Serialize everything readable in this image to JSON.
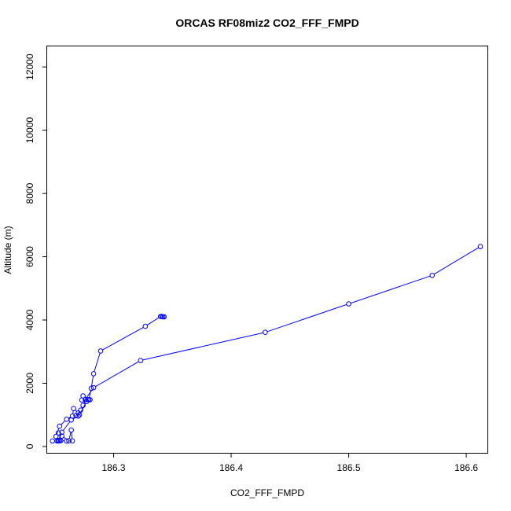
{
  "chart_data": {
    "type": "line",
    "title": "ORCAS RF08miz2 CO2_FFF_FMPD",
    "xlabel": "CO2_FFF_FMPD",
    "ylabel": "Altitude (m)",
    "xlim": [
      186.2435,
      186.618
    ],
    "ylim": [
      -200,
      12650
    ],
    "xticks": [
      186.3,
      186.4,
      186.5,
      186.6
    ],
    "xtick_labels": [
      "186.3",
      "186.4",
      "186.5",
      "186.6"
    ],
    "yticks": [
      0,
      2000,
      4000,
      6000,
      8000,
      10000,
      12000
    ],
    "ytick_labels": [
      "0",
      "2000",
      "4000",
      "6000",
      "8000",
      "10000",
      "12000"
    ],
    "grid": false,
    "color": "#0000ff",
    "series": [
      {
        "points": [
          [
            186.248,
            175
          ],
          [
            186.252,
            175
          ],
          [
            186.254,
            180
          ],
          [
            186.253,
            190
          ],
          [
            186.255,
            185
          ],
          [
            186.26,
            175
          ],
          [
            186.265,
            178
          ],
          [
            186.264,
            520
          ],
          [
            186.262,
            180
          ],
          [
            186.256,
            330
          ],
          [
            186.253,
            430
          ],
          [
            186.251,
            320
          ],
          [
            186.254,
            640
          ],
          [
            186.26,
            860
          ],
          [
            186.265,
            960
          ],
          [
            186.266,
            1200
          ],
          [
            186.27,
            1060
          ],
          [
            186.268,
            980
          ],
          [
            186.272,
            1150
          ],
          [
            186.274,
            1300
          ],
          [
            186.276,
            1480
          ],
          [
            186.278,
            1480
          ],
          [
            186.274,
            1600
          ],
          [
            186.273,
            1470
          ],
          [
            186.28,
            1480
          ],
          [
            186.279,
            1480
          ],
          [
            186.281,
            1840
          ],
          [
            186.283,
            2300
          ],
          [
            186.289,
            3020
          ],
          [
            186.327,
            3800
          ],
          [
            186.34,
            4110
          ],
          [
            186.342,
            4100
          ],
          [
            186.341,
            4110
          ],
          [
            186.343,
            4100
          ]
        ]
      },
      {
        "points": [
          [
            186.253,
            175
          ],
          [
            186.256,
            450
          ],
          [
            186.264,
            840
          ],
          [
            186.27,
            960
          ],
          [
            186.271,
            1000
          ],
          [
            186.277,
            1420
          ],
          [
            186.276,
            1490
          ],
          [
            186.283,
            1860
          ],
          [
            186.323,
            2720
          ],
          [
            186.429,
            3610
          ],
          [
            186.5,
            4510
          ],
          [
            186.571,
            5410
          ],
          [
            186.612,
            6320
          ]
        ]
      }
    ]
  }
}
